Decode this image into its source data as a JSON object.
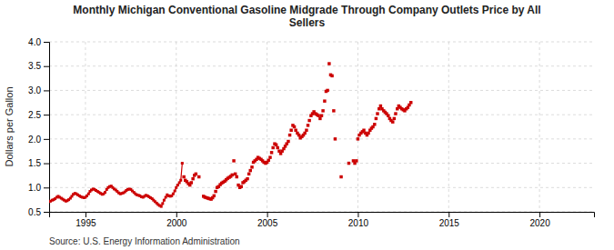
{
  "chart_data": {
    "type": "line",
    "title": "Monthly Michigan Conventional Gasoline Midgrade Through Company Outlets Price by All\nSellers",
    "ylabel": "Dollars per Gallon",
    "source": "Source: U.S. Energy Information Administration",
    "xlim": [
      1993.0,
      2023.0
    ],
    "ylim": [
      0.5,
      4.0
    ],
    "xticks": [
      1995,
      2000,
      2005,
      2010,
      2015,
      2020
    ],
    "yticks": [
      0.5,
      {
        "value": 1.0,
        "label": "1.0"
      },
      1.5,
      {
        "value": 2.0,
        "label": "2.0"
      },
      2.5,
      {
        "value": 3.0,
        "label": "3.0"
      },
      3.5,
      {
        "value": 4.0,
        "label": "4.0"
      }
    ],
    "grid": true,
    "series": [
      {
        "type": "line",
        "color": "#cc0000",
        "marker": "square",
        "line_style": "solid",
        "x": [
          1993.0,
          1993.08,
          1993.17,
          1993.25,
          1993.33,
          1993.42,
          1993.5,
          1993.58,
          1993.67,
          1993.75,
          1993.83,
          1993.92,
          1994.0,
          1994.08,
          1994.17,
          1994.25,
          1994.33,
          1994.42,
          1994.5,
          1994.58,
          1994.67,
          1994.75,
          1994.83,
          1994.92,
          1995.0,
          1995.08,
          1995.17,
          1995.25,
          1995.33,
          1995.42,
          1995.5,
          1995.58,
          1995.67,
          1995.75,
          1995.83,
          1995.92,
          1996.0,
          1996.08,
          1996.17,
          1996.25,
          1996.33,
          1996.42,
          1996.5,
          1996.58,
          1996.67,
          1996.75,
          1996.83,
          1996.92,
          1997.0,
          1997.08,
          1997.17,
          1997.25,
          1997.33,
          1997.42,
          1997.5,
          1997.58,
          1997.67,
          1997.75,
          1997.83,
          1997.92,
          1998.0,
          1998.08,
          1998.17,
          1998.25,
          1998.33,
          1998.42,
          1998.5,
          1998.58,
          1998.67,
          1998.75,
          1998.83,
          1998.92,
          1999.0,
          1999.08,
          1999.17,
          1999.25,
          1999.33,
          1999.42,
          1999.5,
          1999.58,
          1999.67,
          1999.75,
          1999.83,
          1999.92,
          2000.0,
          2000.08,
          2000.17,
          2000.25,
          2000.33
        ],
        "values": [
          0.71,
          0.72,
          0.74,
          0.75,
          0.77,
          0.8,
          0.82,
          0.8,
          0.78,
          0.76,
          0.74,
          0.72,
          0.73,
          0.75,
          0.78,
          0.82,
          0.86,
          0.88,
          0.87,
          0.85,
          0.83,
          0.81,
          0.8,
          0.79,
          0.8,
          0.83,
          0.87,
          0.92,
          0.95,
          0.97,
          0.96,
          0.94,
          0.92,
          0.9,
          0.88,
          0.86,
          0.87,
          0.9,
          0.96,
          1.0,
          1.02,
          1.03,
          1.0,
          0.97,
          0.95,
          0.92,
          0.89,
          0.87,
          0.88,
          0.89,
          0.91,
          0.94,
          0.96,
          0.97,
          0.96,
          0.93,
          0.9,
          0.87,
          0.85,
          0.84,
          0.83,
          0.81,
          0.8,
          0.82,
          0.84,
          0.83,
          0.81,
          0.79,
          0.77,
          0.74,
          0.71,
          0.68,
          0.65,
          0.63,
          0.61,
          0.67,
          0.74,
          0.8,
          0.85,
          0.83,
          0.82,
          0.83,
          0.87,
          0.93,
          1.0,
          1.05,
          1.1,
          1.15,
          1.5
        ]
      },
      {
        "type": "scatter",
        "color": "#cc0000",
        "marker": "square",
        "x": [
          2000.42,
          2000.5,
          2000.58,
          2000.67,
          2000.75,
          2000.83,
          2000.92,
          2001.0,
          2001.08,
          2001.25,
          2001.5,
          2001.58,
          2001.67,
          2001.75,
          2001.83,
          2001.92,
          2002.0,
          2002.08,
          2002.17,
          2002.25,
          2002.33,
          2002.42,
          2002.5,
          2002.58,
          2002.67,
          2002.75,
          2002.83,
          2002.92,
          2003.0,
          2003.08,
          2003.17,
          2003.25,
          2003.33,
          2003.42,
          2003.5,
          2003.58,
          2003.67,
          2003.75,
          2003.83,
          2003.92,
          2004.0,
          2004.08,
          2004.17,
          2004.25,
          2004.33,
          2004.42,
          2004.5,
          2004.58,
          2004.67,
          2004.75,
          2004.83,
          2004.92,
          2005.0,
          2005.08,
          2005.17,
          2005.25,
          2005.33,
          2005.42,
          2005.5,
          2005.58,
          2005.67,
          2005.75,
          2005.83,
          2005.92,
          2006.0,
          2006.08,
          2006.17,
          2006.25,
          2006.33,
          2006.42,
          2006.5,
          2006.58,
          2006.67,
          2006.75,
          2006.83,
          2006.92,
          2007.0,
          2007.08,
          2007.17,
          2007.25,
          2007.33,
          2007.42,
          2007.5,
          2007.58,
          2007.67,
          2007.75,
          2007.83,
          2007.92,
          2008.0,
          2008.08,
          2008.17,
          2008.25,
          2008.33,
          2008.42,
          2008.5,
          2008.58,
          2008.67,
          2008.75,
          2009.08,
          2009.5,
          2009.75,
          2009.83,
          2009.92,
          2010.0,
          2010.08,
          2010.17,
          2010.25,
          2010.33,
          2010.42,
          2010.5,
          2010.58,
          2010.67,
          2010.75,
          2010.83,
          2010.92,
          2011.0,
          2011.08,
          2011.17,
          2011.25,
          2011.33,
          2011.42,
          2011.5,
          2011.58,
          2011.67,
          2011.75,
          2011.83,
          2011.92,
          2012.0,
          2012.08,
          2012.17,
          2012.25,
          2012.33,
          2012.42,
          2012.5,
          2012.58,
          2012.67,
          2012.75,
          2012.83,
          2012.92
        ],
        "values": [
          1.22,
          1.15,
          1.12,
          1.08,
          1.05,
          1.1,
          1.18,
          1.25,
          1.28,
          1.22,
          0.82,
          0.8,
          0.79,
          0.78,
          0.77,
          0.76,
          0.79,
          0.83,
          0.92,
          1.0,
          1.02,
          1.06,
          1.09,
          1.11,
          1.13,
          1.16,
          1.19,
          1.21,
          1.23,
          1.26,
          1.55,
          1.28,
          1.22,
          1.05,
          1.0,
          1.02,
          1.1,
          1.12,
          1.15,
          1.18,
          1.28,
          1.35,
          1.42,
          1.52,
          1.55,
          1.58,
          1.62,
          1.6,
          1.58,
          1.55,
          1.52,
          1.5,
          1.52,
          1.56,
          1.62,
          1.72,
          1.82,
          1.9,
          1.88,
          1.82,
          1.75,
          1.7,
          1.75,
          1.8,
          1.85,
          1.9,
          1.95,
          2.08,
          2.18,
          2.28,
          2.25,
          2.18,
          2.12,
          2.08,
          2.02,
          2.05,
          2.08,
          2.12,
          2.18,
          2.28,
          2.38,
          2.48,
          2.52,
          2.56,
          2.52,
          2.5,
          2.48,
          2.42,
          2.48,
          2.58,
          2.78,
          2.98,
          3.0,
          3.55,
          3.32,
          3.3,
          2.58,
          2.0,
          1.22,
          1.5,
          1.55,
          1.5,
          1.55,
          2.0,
          2.08,
          2.12,
          2.15,
          2.18,
          2.12,
          2.08,
          2.12,
          2.18,
          2.22,
          2.25,
          2.3,
          2.42,
          2.52,
          2.62,
          2.68,
          2.62,
          2.58,
          2.55,
          2.52,
          2.48,
          2.42,
          2.38,
          2.35,
          2.42,
          2.52,
          2.62,
          2.68,
          2.65,
          2.62,
          2.6,
          2.58,
          2.62,
          2.65,
          2.7,
          2.75
        ]
      }
    ]
  }
}
